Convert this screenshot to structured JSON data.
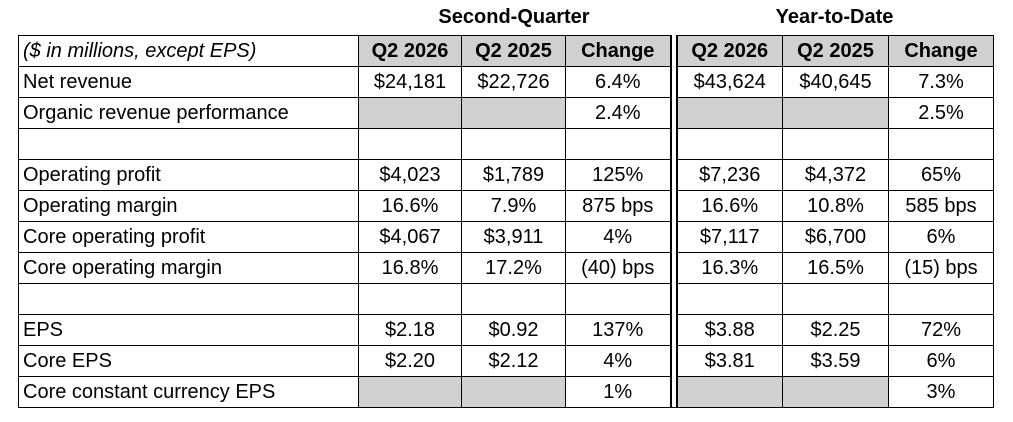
{
  "groups": {
    "second_quarter": "Second-Quarter",
    "year_to_date": "Year-to-Date"
  },
  "header": {
    "label": "($ in millions, except EPS)",
    "q_cur": "Q2 2026",
    "q_prev": "Q2 2025",
    "q_change": "Change",
    "y_cur": "Q2 2026",
    "y_prev": "Q2 2025",
    "y_change": "Change"
  },
  "rows": [
    {
      "label": "Net revenue",
      "q_cur": "$24,181",
      "q_prev": "$22,726",
      "q_change": "6.4%",
      "y_cur": "$43,624",
      "y_prev": "$40,645",
      "y_change": "7.3%"
    },
    {
      "label": "Organic revenue performance",
      "q_cur": "",
      "q_prev": "",
      "q_change": "2.4%",
      "y_cur": "",
      "y_prev": "",
      "y_change": "2.5%"
    },
    {
      "label": "",
      "q_cur": "",
      "q_prev": "",
      "q_change": "",
      "y_cur": "",
      "y_prev": "",
      "y_change": ""
    },
    {
      "label": "Operating profit",
      "q_cur": "$4,023",
      "q_prev": "$1,789",
      "q_change": "125%",
      "y_cur": "$7,236",
      "y_prev": "$4,372",
      "y_change": "65%"
    },
    {
      "label": "Operating margin",
      "q_cur": "16.6%",
      "q_prev": "7.9%",
      "q_change": "875 bps",
      "y_cur": "16.6%",
      "y_prev": "10.8%",
      "y_change": "585 bps"
    },
    {
      "label": "Core operating profit",
      "q_cur": "$4,067",
      "q_prev": "$3,911",
      "q_change": "4%",
      "y_cur": "$7,117",
      "y_prev": "$6,700",
      "y_change": "6%"
    },
    {
      "label": "Core operating margin",
      "q_cur": "16.8%",
      "q_prev": "17.2%",
      "q_change": "(40) bps",
      "y_cur": "16.3%",
      "y_prev": "16.5%",
      "y_change": "(15) bps"
    },
    {
      "label": "",
      "q_cur": "",
      "q_prev": "",
      "q_change": "",
      "y_cur": "",
      "y_prev": "",
      "y_change": ""
    },
    {
      "label": "EPS",
      "q_cur": "$2.18",
      "q_prev": "$0.92",
      "q_change": "137%",
      "y_cur": "$3.88",
      "y_prev": "$2.25",
      "y_change": "72%"
    },
    {
      "label": "Core EPS",
      "q_cur": "$2.20",
      "q_prev": "$2.12",
      "q_change": "4%",
      "y_cur": "$3.81",
      "y_prev": "$3.59",
      "y_change": "6%"
    },
    {
      "label": "Core constant currency EPS",
      "q_cur": "",
      "q_prev": "",
      "q_change": "1%",
      "y_cur": "",
      "y_prev": "",
      "y_change": "3%"
    }
  ]
}
